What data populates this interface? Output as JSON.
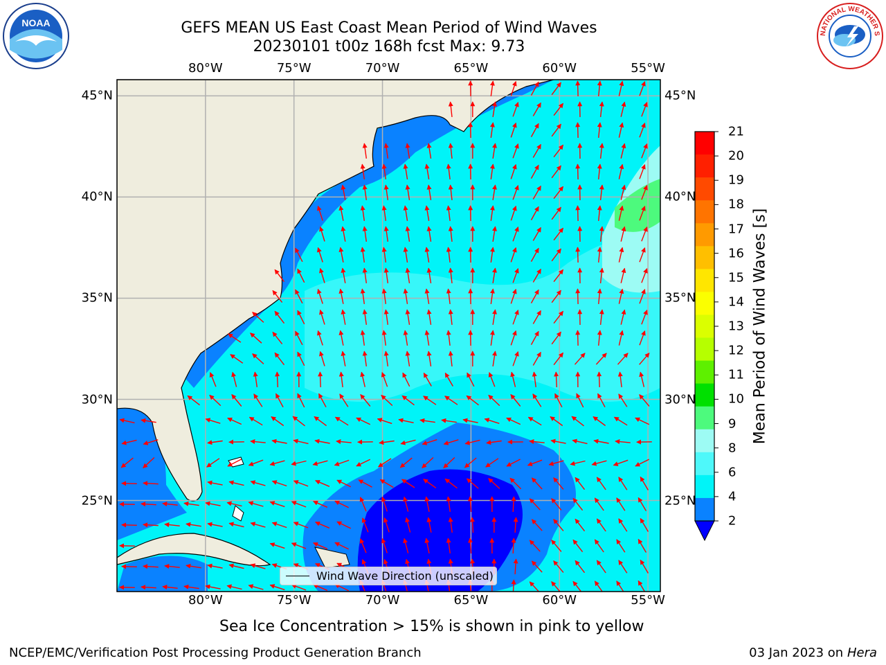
{
  "title_line1": "GEFS MEAN US East Coast Mean Period of Wind Waves",
  "title_line2": "20230101 t00z 168h fcst   Max: 9.73",
  "logos": {
    "left": "NOAA",
    "right": "NATIONAL WEATHER SERVICE"
  },
  "axis": {
    "lon_labels": [
      "80°W",
      "75°W",
      "70°W",
      "65°W",
      "60°W",
      "55°W"
    ],
    "lon_values": [
      -80,
      -75,
      -70,
      -65,
      -60,
      -55
    ],
    "lat_labels": [
      "45°N",
      "40°N",
      "35°N",
      "30°N",
      "25°N"
    ],
    "lat_values": [
      45,
      40,
      35,
      30,
      25
    ],
    "lon_range": [
      -85,
      -54.3
    ],
    "lat_range": [
      20.5,
      45.8
    ]
  },
  "colorbar": {
    "label": "Mean Period of Wind Waves [s]",
    "ticks": [
      "21",
      "20",
      "19",
      "18",
      "17",
      "16",
      "15",
      "14",
      "13",
      "12",
      "11",
      "10",
      "9",
      "8",
      "6",
      "4",
      "2"
    ],
    "colors": [
      "#ff0000",
      "#ff2000",
      "#ff4a00",
      "#ff7400",
      "#ff9a00",
      "#ffbf00",
      "#ffe600",
      "#fbff00",
      "#dbff00",
      "#b6ff00",
      "#5ef000",
      "#00e000",
      "#4dfa7d",
      "#9dfbf4",
      "#4ef8fa",
      "#00f4f8",
      "#0a82ff"
    ],
    "under_color": "#0000ff"
  },
  "legend": {
    "label": "Wind Wave Direction (unscaled)"
  },
  "subtitle": "Sea Ice Concentration > 15% is shown in pink to yellow",
  "credit": "NCEP/EMC/Verification Post Processing Product Generation Branch",
  "datestamp": {
    "date": "03 Jan 2023 on",
    "host": "Hera"
  },
  "colors": {
    "land": "#efedde",
    "ocean": "#00f4f8",
    "arrow": "#ff0000",
    "grid": "#b0b0b0"
  }
}
